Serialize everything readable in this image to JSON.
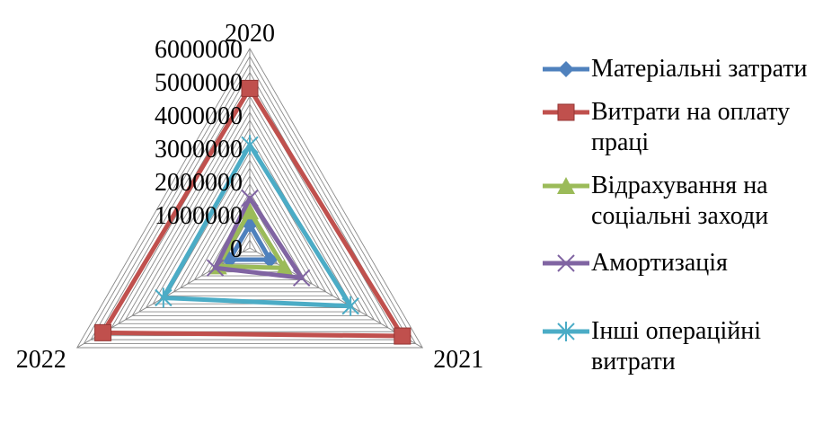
{
  "chart_data": {
    "type": "radar",
    "categories": [
      "2020",
      "2021",
      "2022"
    ],
    "rlim": [
      0,
      6000000
    ],
    "ticks": [
      0,
      1000000,
      2000000,
      3000000,
      4000000,
      5000000,
      6000000
    ],
    "tick_labels": [
      "0",
      "1000000",
      "2000000",
      "3000000",
      "4000000",
      "5000000",
      "6000000"
    ],
    "grid": true,
    "legend_position": "right",
    "series": [
      {
        "name": "Матеріальні затрати",
        "color": "#4f81bd",
        "marker": "diamond",
        "values": [
          700000,
          700000,
          700000
        ]
      },
      {
        "name": "Витрати на оплату праці",
        "color": "#c0504d",
        "marker": "square",
        "values": [
          4800000,
          5300000,
          5100000
        ]
      },
      {
        "name": "Відрахування на соціальні заходи",
        "color": "#9bbb59",
        "marker": "triangle",
        "values": [
          1100000,
          1200000,
          1100000
        ]
      },
      {
        "name": "Амортизація",
        "color": "#8064a2",
        "marker": "x",
        "values": [
          1500000,
          1800000,
          1200000
        ]
      },
      {
        "name": "Інші операційні витрати",
        "color": "#4bacc6",
        "marker": "star",
        "values": [
          3100000,
          3500000,
          3000000
        ]
      }
    ]
  }
}
